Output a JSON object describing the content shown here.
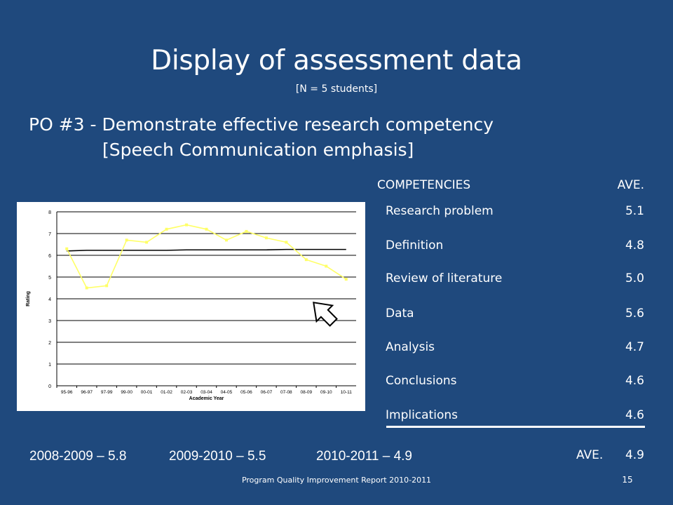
{
  "slide": {
    "title": "Display of assessment data",
    "subtitle": "[N = 5 students]",
    "po_line1": "PO #3 - Demonstrate effective research competency",
    "po_line2": "[Speech Communication emphasis]",
    "footer": "Program Quality Improvement Report 2010-2011",
    "page_number": "15"
  },
  "competencies": {
    "header_label": "COMPETENCIES",
    "header_value": "AVE.",
    "rows": [
      {
        "label": "Research problem",
        "value": "5.1"
      },
      {
        "label": "Definition",
        "value": "4.8"
      },
      {
        "label": "Review of literature",
        "value": "5.0"
      },
      {
        "label": "Data",
        "value": "5.6"
      },
      {
        "label": "Analysis",
        "value": "4.7"
      },
      {
        "label": "Conclusions",
        "value": "4.6"
      },
      {
        "label": "Implications",
        "value": "4.6"
      }
    ],
    "average_label": "AVE.",
    "average_value": "4.9"
  },
  "yearly_averages": [
    {
      "text": "2008-2009 – 5.8"
    },
    {
      "text": "2009-2010 – 5.5"
    },
    {
      "text": "2010-2011  – 4.9"
    }
  ],
  "colors": {
    "background": "#1f497d",
    "series_line": "#ffff66",
    "benchmark_line": "#000000"
  },
  "chart_data": {
    "type": "line",
    "xlabel": "Academic Year",
    "ylabel": "Rating",
    "ylim": [
      0,
      8
    ],
    "yticks": [
      "0",
      "1",
      "2",
      "3",
      "4",
      "5",
      "6",
      "7",
      "8"
    ],
    "categories": [
      "95-96",
      "96-97",
      "97-99",
      "99-00",
      "00-01",
      "01-02",
      "02-03",
      "03-04",
      "04-05",
      "05-06",
      "06-07",
      "07-08",
      "08-09",
      "09-10",
      "10-11"
    ],
    "series": [
      {
        "values": [
          6.3,
          4.5,
          4.6,
          6.7,
          6.6,
          7.2,
          7.4,
          7.2,
          6.7,
          7.1,
          6.8,
          6.6,
          5.8,
          5.5,
          4.9
        ]
      },
      {
        "values": [
          6.2,
          6.23,
          6.23,
          6.23,
          6.23,
          6.23,
          6.25,
          6.25,
          6.25,
          6.25,
          6.25,
          6.27,
          6.27,
          6.27,
          6.27
        ]
      }
    ],
    "grid": true,
    "legend": "none",
    "annotation": "arrow-icon pointing to last point"
  }
}
